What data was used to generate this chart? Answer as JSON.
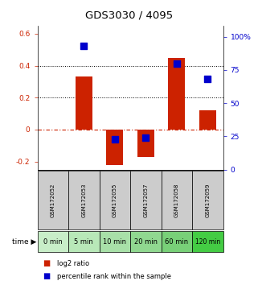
{
  "title": "GDS3030 / 4095",
  "categories": [
    "GSM172052",
    "GSM172053",
    "GSM172055",
    "GSM172057",
    "GSM172058",
    "GSM172059"
  ],
  "time_labels": [
    "0 min",
    "5 min",
    "10 min",
    "20 min",
    "60 min",
    "120 min"
  ],
  "log2_values": [
    0.0,
    0.33,
    -0.22,
    -0.17,
    0.45,
    0.12
  ],
  "percentile_values": [
    null,
    93,
    23,
    24,
    80,
    68
  ],
  "bar_color": "#cc2200",
  "dot_color": "#0000cc",
  "ylim_left": [
    -0.25,
    0.65
  ],
  "ylim_right": [
    0,
    108.33
  ],
  "yticks_left": [
    -0.2,
    0.0,
    0.2,
    0.4,
    0.6
  ],
  "yticks_right": [
    0,
    25,
    50,
    75,
    100
  ],
  "ytick_labels_left": [
    "-0.2",
    "0",
    "0.2",
    "0.4",
    "0.6"
  ],
  "ytick_labels_right": [
    "0",
    "25",
    "50",
    "75",
    "100%"
  ],
  "grid_values": [
    0.4,
    0.2
  ],
  "zero_line": 0.0,
  "grey_bg": "#cccccc",
  "green_bg": "#bbeebb",
  "green_bg_last": "#66dd66",
  "bar_width": 0.55,
  "dot_size": 30
}
